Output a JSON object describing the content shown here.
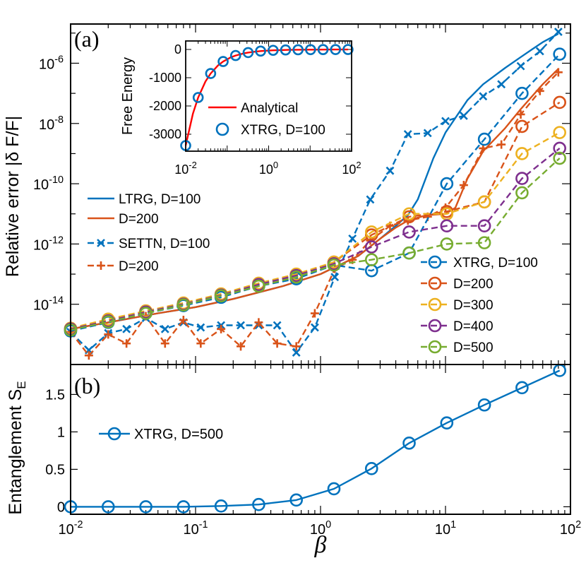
{
  "chart_data": [
    {
      "id": "a",
      "type": "line",
      "panel_label": "(a)",
      "xscale": "log",
      "yscale": "log",
      "xlim": [
        0.01,
        100
      ],
      "ylim": [
        1e-16,
        2e-05
      ],
      "ylabel": "Relative error |δ F/F|",
      "ytick_labels": [
        {
          "base": "10",
          "exp": "-14",
          "value": 1e-14
        },
        {
          "base": "10",
          "exp": "-12",
          "value": 1e-12
        },
        {
          "base": "10",
          "exp": "-10",
          "value": 1e-10
        },
        {
          "base": "10",
          "exp": "-8",
          "value": 1e-08
        },
        {
          "base": "10",
          "exp": "-6",
          "value": 1e-06
        }
      ],
      "series": [
        {
          "name": "LTRG, D=100",
          "legend_label": "LTRG, D=100",
          "color": "#0072BD",
          "style": "solid",
          "marker": "none",
          "x": [
            0.01,
            0.02,
            0.05,
            0.1,
            0.2,
            0.5,
            1,
            2,
            3,
            4,
            5,
            6,
            8,
            10,
            15,
            20,
            30,
            40,
            50,
            60,
            80
          ],
          "y": [
            1.5e-15,
            2.5e-15,
            5e-15,
            8e-15,
            1.5e-14,
            4e-14,
            1e-13,
            4e-13,
            1.5e-12,
            4e-12,
            9e-12,
            3e-11,
            7e-10,
            5e-09,
            6e-08,
            2e-07,
            7e-07,
            1.6e-06,
            3e-06,
            5e-06,
            9.5e-06
          ]
        },
        {
          "name": "LTRG, D=200",
          "legend_label": "D=200",
          "color": "#D95319",
          "style": "solid",
          "marker": "none",
          "x": [
            0.01,
            0.02,
            0.05,
            0.1,
            0.2,
            0.5,
            1,
            2,
            3,
            4,
            5,
            7,
            10,
            12,
            15,
            20,
            30,
            40,
            60,
            80
          ],
          "y": [
            1.5e-15,
            2.5e-15,
            5e-15,
            8e-15,
            1.5e-14,
            4e-14,
            1e-13,
            4e-13,
            1.5e-12,
            3.5e-12,
            6e-12,
            9e-12,
            1e-11,
            1.6e-11,
            1.5e-10,
            1.2e-09,
            7e-09,
            3e-08,
            2e-07,
            6.5e-07
          ]
        },
        {
          "name": "SETTN, D=100",
          "legend_label": "SETTN, D=100",
          "color": "#0072BD",
          "style": "dashed",
          "marker": "x",
          "x": [
            0.01,
            0.014,
            0.02,
            0.028,
            0.04,
            0.057,
            0.08,
            0.11,
            0.16,
            0.23,
            0.32,
            0.45,
            0.64,
            0.9,
            1.3,
            1.8,
            2.5,
            3.6,
            5,
            7.2,
            10,
            14,
            20,
            28,
            40,
            57,
            80
          ],
          "y": [
            1.2e-15,
            3e-16,
            1.1e-15,
            1.5e-15,
            3.5e-15,
            1.5e-15,
            2.5e-15,
            1.7e-15,
            2e-15,
            2e-15,
            2e-15,
            2e-15,
            2.5e-16,
            1.7e-15,
            8e-14,
            1.5e-12,
            3e-11,
            2.7e-10,
            4.4e-09,
            4.8e-09,
            1.2e-08,
            1.8e-08,
            8e-08,
            2e-07,
            8e-07,
            2.5e-06,
            1.1e-05
          ]
        },
        {
          "name": "SETTN, D=200",
          "legend_label": "D=200",
          "color": "#D95319",
          "style": "dashed",
          "marker": "+",
          "x": [
            0.01,
            0.014,
            0.02,
            0.028,
            0.04,
            0.057,
            0.08,
            0.11,
            0.16,
            0.23,
            0.32,
            0.45,
            0.64,
            0.9,
            1.3,
            1.8,
            2.5,
            3.6,
            5,
            7.2,
            10,
            14,
            20,
            28,
            40,
            57,
            80
          ],
          "y": [
            1.2e-15,
            2e-16,
            1e-15,
            5e-16,
            4e-15,
            5e-16,
            3e-15,
            5e-16,
            1.5e-15,
            4e-16,
            2.5e-15,
            5e-16,
            4e-16,
            5e-15,
            1.5e-13,
            3e-13,
            1.3e-12,
            4e-12,
            6e-12,
            8e-12,
            1.6e-11,
            9e-11,
            1.5e-09,
            2e-09,
            2e-08,
            1.2e-07,
            5e-07
          ]
        },
        {
          "name": "XTRG, D=100",
          "legend_label": "XTRG, D=100",
          "color": "#0072BD",
          "style": "dashed",
          "marker": "o",
          "x": [
            0.01,
            0.02,
            0.04,
            0.08,
            0.16,
            0.32,
            0.64,
            1.28,
            2.56,
            5.12,
            10.24,
            20.48,
            40.96,
            81.92
          ],
          "y": [
            1.3e-15,
            2.5e-15,
            5e-15,
            9e-15,
            1.7e-14,
            4e-14,
            7e-14,
            2e-13,
            1.3e-13,
            5e-13,
            1e-10,
            3e-09,
            1e-07,
            2e-06
          ]
        },
        {
          "name": "XTRG, D=200",
          "legend_label": "D=200",
          "color": "#D95319",
          "style": "dashed",
          "marker": "o",
          "x": [
            0.01,
            0.02,
            0.04,
            0.08,
            0.16,
            0.32,
            0.64,
            1.28,
            2.56,
            5.12,
            10.24,
            20.48,
            40.96,
            81.92
          ],
          "y": [
            1.5e-15,
            3e-15,
            6e-15,
            1e-14,
            2e-14,
            4.5e-14,
            9e-14,
            2.5e-13,
            2e-12,
            8e-12,
            1.2e-11,
            2.5e-11,
            8e-09,
            5e-08
          ]
        },
        {
          "name": "XTRG, D=300",
          "legend_label": "D=300",
          "color": "#EDB120",
          "style": "dashed",
          "marker": "o",
          "x": [
            0.01,
            0.02,
            0.04,
            0.08,
            0.16,
            0.32,
            0.64,
            1.28,
            2.56,
            5.12,
            10.24,
            20.48,
            40.96,
            81.92
          ],
          "y": [
            1.6e-15,
            3.2e-15,
            6e-15,
            1.1e-14,
            2.2e-14,
            5e-14,
            1e-13,
            2.5e-13,
            2.5e-12,
            1e-11,
            1e-11,
            2.5e-11,
            1e-09,
            5e-09
          ]
        },
        {
          "name": "XTRG, D=400",
          "legend_label": "D=400",
          "color": "#7E2F8E",
          "style": "dashed",
          "marker": "o",
          "x": [
            0.01,
            0.02,
            0.04,
            0.08,
            0.16,
            0.32,
            0.64,
            1.28,
            2.56,
            5.12,
            10.24,
            20.48,
            40.96,
            81.92
          ],
          "y": [
            1.5e-15,
            2.8e-15,
            5.5e-15,
            1e-14,
            2e-14,
            4.5e-14,
            9e-14,
            2.2e-13,
            8e-13,
            2.5e-12,
            4e-12,
            4e-12,
            1.5e-10,
            1.5e-09
          ]
        },
        {
          "name": "XTRG, D=500",
          "legend_label": "D=500",
          "color": "#77AC30",
          "style": "dashed",
          "marker": "o",
          "x": [
            0.01,
            0.02,
            0.04,
            0.08,
            0.16,
            0.32,
            0.64,
            1.28,
            2.56,
            5.12,
            10.24,
            20.48,
            40.96,
            81.92
          ],
          "y": [
            1.4e-15,
            2.6e-15,
            5e-15,
            9.5e-15,
            1.9e-14,
            4e-14,
            8e-14,
            2e-13,
            3e-13,
            5e-13,
            1e-12,
            1.1e-12,
            5e-11,
            7e-10
          ]
        }
      ]
    },
    {
      "id": "a-inset",
      "type": "line",
      "xscale": "log",
      "yscale": "linear",
      "xlim": [
        0.01,
        100
      ],
      "ylim": [
        -3600,
        300
      ],
      "ylabel": "Free Energy",
      "yticks": [
        -3000,
        -2000,
        -1000,
        0
      ],
      "ytick_labels": [
        "-3000",
        "-2000",
        "-1000",
        "0"
      ],
      "xtick_labels": [
        {
          "base": "10",
          "exp": "-2",
          "value": 0.01
        },
        {
          "base": "10",
          "exp": "0",
          "value": 1
        },
        {
          "base": "10",
          "exp": "2",
          "value": 100
        }
      ],
      "series": [
        {
          "name": "Analytical",
          "legend_label": "Analytical",
          "color": "#FF0000",
          "style": "solid",
          "marker": "none",
          "x": [
            0.01,
            0.015,
            0.02,
            0.03,
            0.04,
            0.06,
            0.08,
            0.12,
            0.16,
            0.25,
            0.32,
            0.5,
            0.64,
            1,
            1.28,
            2,
            3,
            5,
            10,
            20,
            40,
            82
          ],
          "y": [
            -3400,
            -2267,
            -1700,
            -1134,
            -851,
            -568,
            -427,
            -286,
            -215,
            -139,
            -110,
            -73,
            -58,
            -39,
            -31,
            -22,
            -16,
            -11,
            -7,
            -5,
            -3.5,
            -2.5
          ]
        },
        {
          "name": "XTRG, D=100",
          "legend_label": "XTRG, D=100",
          "color": "#0072BD",
          "style": "none",
          "marker": "o",
          "x": [
            0.01,
            0.02,
            0.04,
            0.08,
            0.16,
            0.32,
            0.64,
            1.28,
            2.56,
            5.12,
            10.24,
            20.48,
            40.96,
            81.92
          ],
          "y": [
            -3400,
            -1700,
            -851,
            -427,
            -215,
            -110,
            -58,
            -31,
            -18,
            -11,
            -7,
            -5,
            -3.5,
            -2.5
          ]
        }
      ]
    },
    {
      "id": "b",
      "type": "line",
      "panel_label": "(b)",
      "xscale": "log",
      "yscale": "linear",
      "xlim": [
        0.01,
        100
      ],
      "ylim": [
        -0.1,
        1.9
      ],
      "xlabel": "β",
      "ylabel": "Entanglement S",
      "ylabel_sub": "E",
      "yticks": [
        0,
        0.5,
        1,
        1.5
      ],
      "ytick_labels": [
        "0",
        "0.5",
        "1",
        "1.5"
      ],
      "xtick_labels": [
        {
          "base": "10",
          "exp": "-2",
          "value": 0.01
        },
        {
          "base": "10",
          "exp": "-1",
          "value": 0.1
        },
        {
          "base": "10",
          "exp": "0",
          "value": 1
        },
        {
          "base": "10",
          "exp": "1",
          "value": 10
        },
        {
          "base": "10",
          "exp": "2",
          "value": 100
        }
      ],
      "series": [
        {
          "name": "XTRG, D=500",
          "legend_label": "XTRG, D=500",
          "color": "#0072BD",
          "style": "solid",
          "marker": "o",
          "x": [
            0.01,
            0.02,
            0.04,
            0.08,
            0.16,
            0.32,
            0.64,
            1.28,
            2.56,
            5.12,
            10.24,
            20.48,
            40.96,
            81.92
          ],
          "y": [
            0.0,
            0.0,
            0.0,
            0.0,
            0.01,
            0.03,
            0.09,
            0.24,
            0.51,
            0.85,
            1.12,
            1.36,
            1.59,
            1.82
          ]
        }
      ]
    }
  ]
}
